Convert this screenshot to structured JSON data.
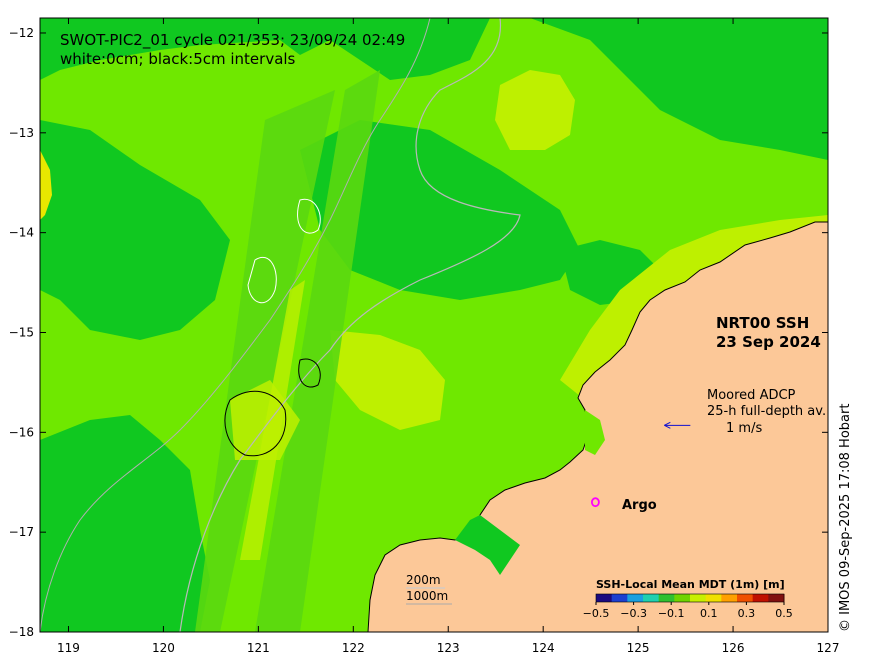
{
  "title": {
    "line1": "SWOT-PIC2_01 cycle 021/353; 23/09/24 02:49",
    "line2": "white:0cm; black:5cm intervals"
  },
  "product": {
    "name": "NRT00 SSH",
    "date": "23 Sep 2024"
  },
  "adcp_legend": {
    "line1": "Moored ADCP",
    "line2": "25-h full-depth av.",
    "scale_label": "1 m/s",
    "arrow_color": "#1010d0"
  },
  "argo_legend": {
    "symbol": "o",
    "label": "Argo",
    "color": "#ff00ff"
  },
  "isobaths": {
    "line1": "200m",
    "line2": "1000m"
  },
  "colorbar": {
    "title": "SSH-Local Mean MDT (1m) [m]",
    "ticks": [
      -0.5,
      -0.3,
      -0.1,
      0.1,
      0.3,
      0.5
    ],
    "tick_labels": [
      "−0.5",
      "−0.3",
      "−0.1",
      "0.1",
      "0.3",
      "0.5"
    ],
    "colors": [
      "#1a0a80",
      "#1c3fd0",
      "#1aa0e0",
      "#20d0b0",
      "#30c030",
      "#6fd400",
      "#c8f000",
      "#f0e000",
      "#ffa000",
      "#f05000",
      "#c01000",
      "#801010"
    ]
  },
  "credit": "© IMOS 09-Sep-2025 17:08 Hobart",
  "map": {
    "lon_range": [
      118.7,
      127
    ],
    "lat_range": [
      -18,
      -11.85
    ],
    "x_ticks": [
      119,
      120,
      121,
      122,
      123,
      124,
      125,
      126,
      127
    ],
    "x_tick_labels": [
      "119",
      "120",
      "121",
      "122",
      "123",
      "124",
      "125",
      "126",
      "127"
    ],
    "y_ticks": [
      -12,
      -13,
      -14,
      -15,
      -16,
      -17,
      -18
    ],
    "y_tick_labels": [
      "−12",
      "−13",
      "−14",
      "−15",
      "−16",
      "−17",
      "−18"
    ],
    "land_color": "#fcc898",
    "ocean_colors": {
      "base": "#6fe800",
      "high": "#bef000",
      "higher": "#e8e800",
      "low": "#10c820",
      "swath": "#5ad810"
    },
    "argo_float": {
      "lon": 124.55,
      "lat": -16.7
    },
    "adcp_arrow": {
      "lon": 125.55,
      "lat": -15.93,
      "u": -1,
      "v": 0
    }
  }
}
